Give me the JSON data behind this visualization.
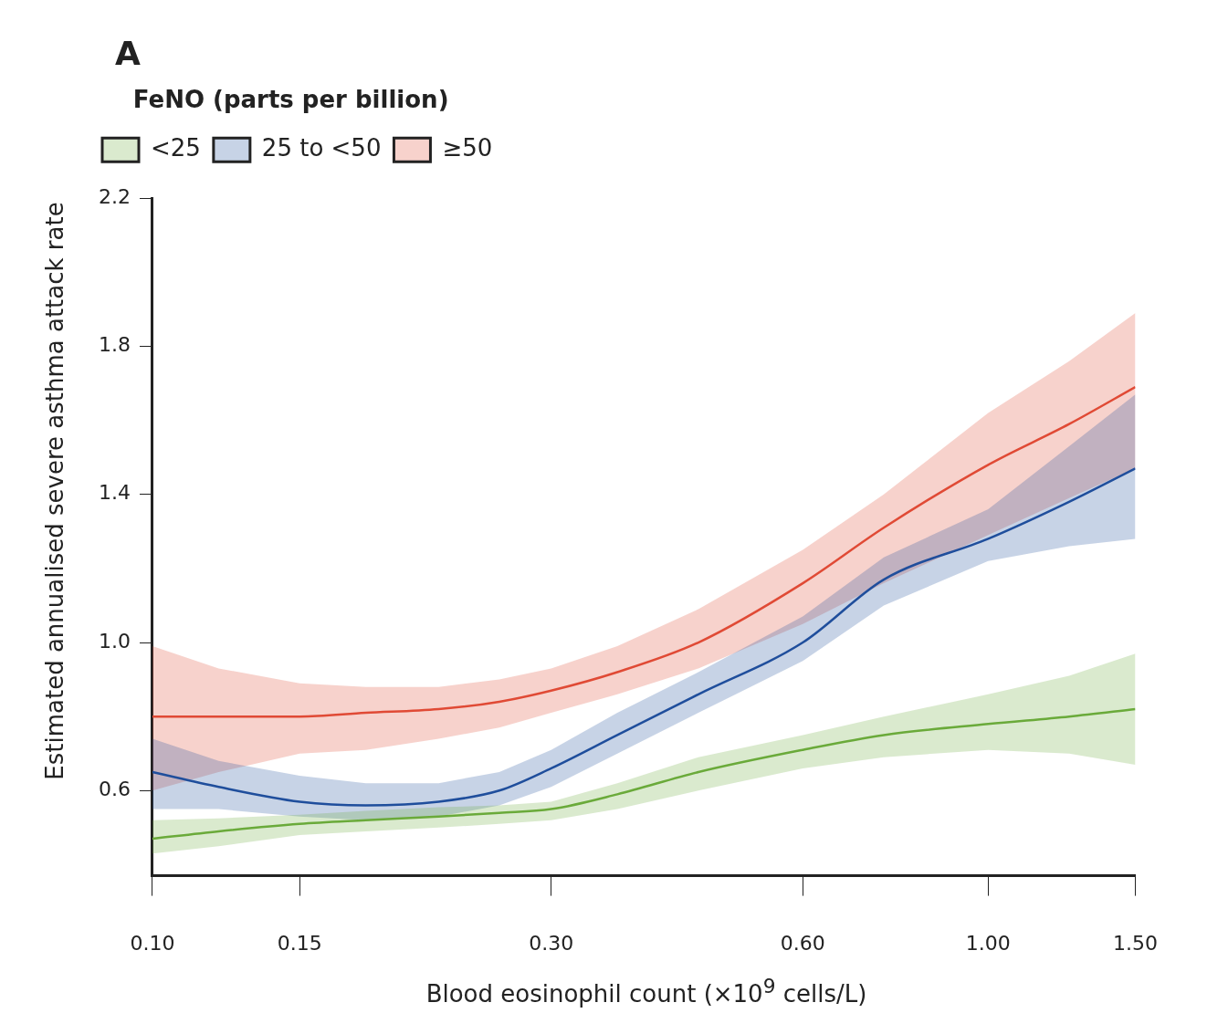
{
  "chart_data": {
    "type": "line",
    "title": "A",
    "xlabel": "Blood eosinophil count (×10$^{9}$ cells/L)",
    "ylabel": "Estimated annualised severe asthma attack rate",
    "legend_title": "FeNO (parts per billion)",
    "log": "x",
    "grid": false,
    "legend": "top left",
    "marker": "none",
    "line_style": "solid",
    "x": [
      0.1,
      0.12,
      0.15,
      0.18,
      0.22,
      0.26,
      0.3,
      0.36,
      0.45,
      0.6,
      0.75,
      1.0,
      1.25,
      1.5
    ],
    "series": [
      {
        "name": "<25",
        "color": "#6aaa3a",
        "values": [
          0.47,
          0.49,
          0.51,
          0.52,
          0.53,
          0.54,
          0.55,
          0.59,
          0.65,
          0.71,
          0.75,
          0.78,
          0.8,
          0.82
        ],
        "lower": [
          0.43,
          0.45,
          0.48,
          0.49,
          0.5,
          0.51,
          0.52,
          0.55,
          0.6,
          0.66,
          0.69,
          0.71,
          0.7,
          0.67
        ],
        "upper": [
          0.52,
          0.525,
          0.535,
          0.545,
          0.555,
          0.56,
          0.57,
          0.62,
          0.69,
          0.75,
          0.8,
          0.86,
          0.91,
          0.97
        ]
      },
      {
        "name": "25 to <50",
        "color": "#1f4e9c",
        "values": [
          0.65,
          0.61,
          0.57,
          0.56,
          0.57,
          0.6,
          0.66,
          0.75,
          0.86,
          1.0,
          1.17,
          1.28,
          1.38,
          1.47
        ],
        "lower": [
          0.55,
          0.55,
          0.53,
          0.52,
          0.53,
          0.56,
          0.61,
          0.7,
          0.81,
          0.95,
          1.1,
          1.22,
          1.26,
          1.28
        ],
        "upper": [
          0.74,
          0.68,
          0.64,
          0.62,
          0.62,
          0.65,
          0.71,
          0.81,
          0.92,
          1.07,
          1.23,
          1.36,
          1.53,
          1.67
        ]
      },
      {
        "name": "≥50",
        "color": "#e04a35",
        "values": [
          0.8,
          0.8,
          0.8,
          0.81,
          0.82,
          0.84,
          0.87,
          0.92,
          1.0,
          1.16,
          1.31,
          1.48,
          1.59,
          1.69
        ],
        "lower": [
          0.6,
          0.65,
          0.7,
          0.71,
          0.74,
          0.77,
          0.81,
          0.86,
          0.93,
          1.05,
          1.16,
          1.29,
          1.39,
          1.47
        ],
        "upper": [
          0.99,
          0.93,
          0.89,
          0.88,
          0.88,
          0.9,
          0.93,
          0.99,
          1.09,
          1.25,
          1.4,
          1.62,
          1.76,
          1.89
        ]
      }
    ],
    "xlim": [
      0.1,
      1.5
    ],
    "xticks": [
      {
        "value": 0.1,
        "label": "0.10"
      },
      {
        "value": 0.15,
        "label": "0.15"
      },
      {
        "value": 0.3,
        "label": "0.30"
      },
      {
        "value": 0.6,
        "label": "0.60"
      },
      {
        "value": 1.0,
        "label": "1.00"
      },
      {
        "value": 1.5,
        "label": "1.50"
      }
    ],
    "ylim": [
      0.37,
      2.2
    ],
    "yticks": [
      {
        "value": 0.6,
        "label": "0.6"
      },
      {
        "value": 1.0,
        "label": "1.0"
      },
      {
        "value": 1.4,
        "label": "1.4"
      },
      {
        "value": 1.8,
        "label": "1.8"
      },
      {
        "value": 2.2,
        "label": "2.2"
      }
    ]
  }
}
